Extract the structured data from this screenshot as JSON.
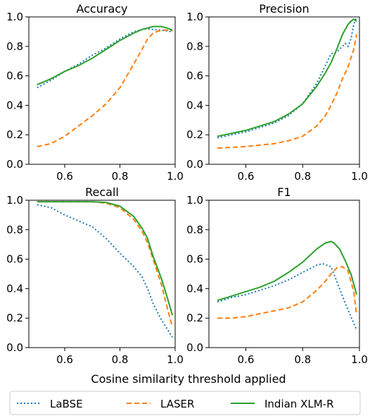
{
  "figure": {
    "xlabel": "Cosine similarity threshold applied"
  },
  "legend": {
    "entries": [
      "LaBSE",
      "LASER",
      "Indian XLM-R"
    ]
  },
  "series_styles": [
    {
      "name": "LaBSE",
      "color": "#1f77b4",
      "dash": "2,3"
    },
    {
      "name": "LASER",
      "color": "#ff7f0e",
      "dash": "7,4"
    },
    {
      "name": "Indian XLM-R",
      "color": "#2ca02c",
      "dash": ""
    }
  ],
  "chart_data": [
    {
      "type": "line",
      "title": "Accuracy",
      "xlim": [
        0.47,
        1.0
      ],
      "ylim": [
        0.0,
        1.0
      ],
      "xticks": [
        0.6,
        0.8,
        1.0
      ],
      "yticks": [
        0.0,
        0.2,
        0.4,
        0.6,
        0.8,
        1.0
      ],
      "series": [
        {
          "name": "LaBSE",
          "x": [
            0.5,
            0.55,
            0.6,
            0.65,
            0.7,
            0.75,
            0.8,
            0.85,
            0.88,
            0.9,
            0.92,
            0.95,
            0.97,
            0.99
          ],
          "y": [
            0.52,
            0.57,
            0.63,
            0.68,
            0.74,
            0.79,
            0.85,
            0.9,
            0.915,
            0.92,
            0.915,
            0.91,
            0.905,
            0.9
          ]
        },
        {
          "name": "LASER",
          "x": [
            0.5,
            0.55,
            0.6,
            0.65,
            0.7,
            0.75,
            0.8,
            0.85,
            0.88,
            0.9,
            0.92,
            0.94,
            0.96,
            0.98,
            0.99
          ],
          "y": [
            0.12,
            0.14,
            0.19,
            0.26,
            0.33,
            0.41,
            0.52,
            0.68,
            0.78,
            0.85,
            0.89,
            0.905,
            0.91,
            0.91,
            0.905
          ]
        },
        {
          "name": "Indian XLM-R",
          "x": [
            0.5,
            0.55,
            0.6,
            0.65,
            0.7,
            0.75,
            0.8,
            0.85,
            0.88,
            0.9,
            0.92,
            0.95,
            0.97,
            0.99
          ],
          "y": [
            0.54,
            0.58,
            0.63,
            0.67,
            0.72,
            0.78,
            0.84,
            0.89,
            0.915,
            0.925,
            0.935,
            0.935,
            0.925,
            0.91
          ]
        }
      ]
    },
    {
      "type": "line",
      "title": "Precision",
      "xlim": [
        0.47,
        1.0
      ],
      "ylim": [
        0.0,
        1.0
      ],
      "xticks": [
        0.6,
        0.8,
        1.0
      ],
      "yticks": [
        0.0,
        0.2,
        0.4,
        0.6,
        0.8,
        1.0
      ],
      "series": [
        {
          "name": "LaBSE",
          "x": [
            0.5,
            0.55,
            0.6,
            0.65,
            0.7,
            0.75,
            0.8,
            0.85,
            0.88,
            0.9,
            0.92,
            0.94,
            0.95,
            0.96,
            0.97,
            0.98,
            0.99
          ],
          "y": [
            0.18,
            0.2,
            0.22,
            0.25,
            0.28,
            0.33,
            0.41,
            0.55,
            0.67,
            0.75,
            0.76,
            0.8,
            0.82,
            0.8,
            0.85,
            0.95,
            1.0
          ]
        },
        {
          "name": "LASER",
          "x": [
            0.5,
            0.55,
            0.6,
            0.65,
            0.7,
            0.75,
            0.8,
            0.85,
            0.88,
            0.9,
            0.92,
            0.94,
            0.96,
            0.98,
            0.99
          ],
          "y": [
            0.11,
            0.115,
            0.12,
            0.13,
            0.14,
            0.16,
            0.19,
            0.26,
            0.33,
            0.4,
            0.48,
            0.58,
            0.66,
            0.78,
            0.88
          ]
        },
        {
          "name": "Indian XLM-R",
          "x": [
            0.5,
            0.55,
            0.6,
            0.65,
            0.7,
            0.75,
            0.8,
            0.85,
            0.88,
            0.9,
            0.92,
            0.94,
            0.96,
            0.97,
            0.98,
            0.99
          ],
          "y": [
            0.19,
            0.21,
            0.23,
            0.26,
            0.29,
            0.34,
            0.41,
            0.53,
            0.62,
            0.69,
            0.78,
            0.88,
            0.95,
            0.97,
            0.985,
            0.97
          ]
        }
      ]
    },
    {
      "type": "line",
      "title": "Recall",
      "xlim": [
        0.47,
        1.0
      ],
      "ylim": [
        0.0,
        1.0
      ],
      "xticks": [
        0.6,
        0.8,
        1.0
      ],
      "yticks": [
        0.0,
        0.2,
        0.4,
        0.6,
        0.8,
        1.0
      ],
      "series": [
        {
          "name": "LaBSE",
          "x": [
            0.5,
            0.55,
            0.6,
            0.65,
            0.7,
            0.75,
            0.8,
            0.85,
            0.88,
            0.9,
            0.92,
            0.95,
            0.97,
            0.99
          ],
          "y": [
            0.97,
            0.95,
            0.9,
            0.86,
            0.82,
            0.74,
            0.64,
            0.55,
            0.48,
            0.4,
            0.3,
            0.19,
            0.13,
            0.07
          ]
        },
        {
          "name": "LASER",
          "x": [
            0.5,
            0.55,
            0.6,
            0.65,
            0.7,
            0.75,
            0.8,
            0.85,
            0.88,
            0.9,
            0.92,
            0.95,
            0.97,
            0.99
          ],
          "y": [
            0.99,
            0.99,
            0.99,
            0.99,
            0.99,
            0.98,
            0.95,
            0.87,
            0.79,
            0.71,
            0.6,
            0.43,
            0.28,
            0.14
          ]
        },
        {
          "name": "Indian XLM-R",
          "x": [
            0.5,
            0.55,
            0.6,
            0.65,
            0.7,
            0.75,
            0.8,
            0.85,
            0.88,
            0.9,
            0.92,
            0.95,
            0.97,
            0.99
          ],
          "y": [
            0.99,
            0.99,
            0.99,
            0.99,
            0.99,
            0.985,
            0.96,
            0.89,
            0.81,
            0.74,
            0.62,
            0.47,
            0.35,
            0.22
          ]
        }
      ]
    },
    {
      "type": "line",
      "title": "F1",
      "xlim": [
        0.47,
        1.0
      ],
      "ylim": [
        0.0,
        1.0
      ],
      "xticks": [
        0.6,
        0.8,
        1.0
      ],
      "yticks": [
        0.0,
        0.2,
        0.4,
        0.6,
        0.8,
        1.0
      ],
      "series": [
        {
          "name": "LaBSE",
          "x": [
            0.5,
            0.55,
            0.6,
            0.65,
            0.7,
            0.75,
            0.8,
            0.85,
            0.87,
            0.9,
            0.92,
            0.95,
            0.97,
            0.99
          ],
          "y": [
            0.31,
            0.34,
            0.36,
            0.39,
            0.42,
            0.46,
            0.51,
            0.56,
            0.57,
            0.55,
            0.45,
            0.3,
            0.21,
            0.12
          ]
        },
        {
          "name": "LASER",
          "x": [
            0.5,
            0.55,
            0.6,
            0.65,
            0.7,
            0.75,
            0.8,
            0.85,
            0.88,
            0.9,
            0.92,
            0.94,
            0.96,
            0.98,
            0.99
          ],
          "y": [
            0.2,
            0.2,
            0.21,
            0.23,
            0.25,
            0.27,
            0.31,
            0.39,
            0.45,
            0.5,
            0.54,
            0.55,
            0.52,
            0.38,
            0.22
          ]
        },
        {
          "name": "Indian XLM-R",
          "x": [
            0.5,
            0.55,
            0.6,
            0.65,
            0.7,
            0.75,
            0.8,
            0.85,
            0.88,
            0.9,
            0.91,
            0.93,
            0.95,
            0.97,
            0.99
          ],
          "y": [
            0.32,
            0.35,
            0.38,
            0.41,
            0.45,
            0.51,
            0.58,
            0.67,
            0.71,
            0.72,
            0.71,
            0.67,
            0.59,
            0.5,
            0.36
          ]
        }
      ]
    }
  ]
}
